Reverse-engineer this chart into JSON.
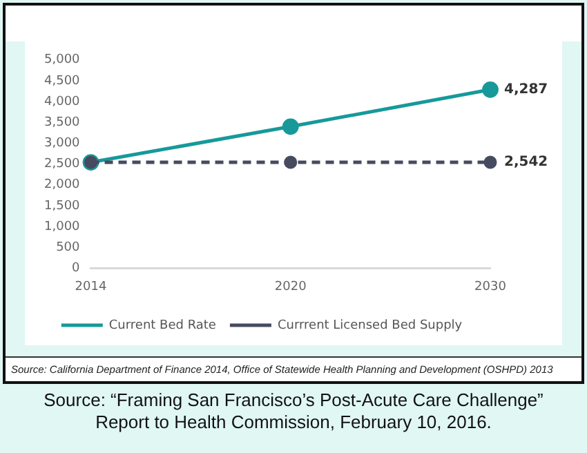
{
  "chart_data": {
    "type": "line",
    "categories": [
      "2014",
      "2020",
      "2030"
    ],
    "series": [
      {
        "name": "Current Bed Rate",
        "color": "#17999a",
        "values": [
          2542,
          3400,
          4287
        ],
        "line_style": "solid",
        "value_labels": [
          null,
          null,
          "4,287"
        ]
      },
      {
        "name": "Currrent Licensed Bed Supply",
        "color": "#464b60",
        "values": [
          2542,
          2542,
          2542
        ],
        "line_style": "dashed",
        "value_labels": [
          null,
          null,
          "2,542"
        ]
      }
    ],
    "ylim": [
      0,
      5000
    ],
    "yticks": [
      {
        "value": 0,
        "label": "0"
      },
      {
        "value": 500,
        "label": "500"
      },
      {
        "value": 1000,
        "label": "1,000"
      },
      {
        "value": 1500,
        "label": "1,500"
      },
      {
        "value": 2000,
        "label": "2,000"
      },
      {
        "value": 2500,
        "label": "2,500"
      },
      {
        "value": 3000,
        "label": "3,000"
      },
      {
        "value": 3500,
        "label": "3,500"
      },
      {
        "value": 4000,
        "label": "4,000"
      },
      {
        "value": 4500,
        "label": "4,500"
      },
      {
        "value": 5000,
        "label": "5,000"
      }
    ],
    "grid": false,
    "legend": "bottom",
    "marker": "circle",
    "annotations": [
      "Source: California Department of Finance 2014, Office of Statewide Health Planning and Development (OSHPD) 2013",
      "Source: “Framing San Francisco’s Post-Acute Care Challenge”",
      "Report to Health Commission, February 10, 2016."
    ]
  }
}
